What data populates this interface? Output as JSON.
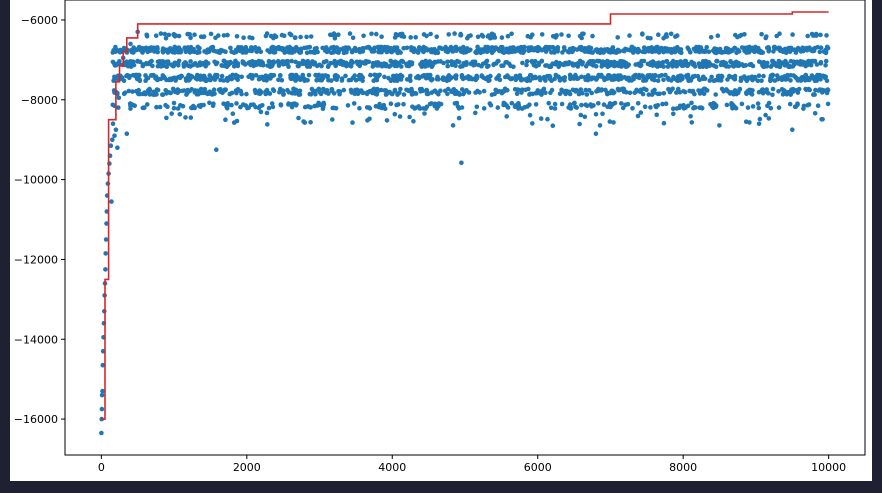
{
  "colors": {
    "page_background": "#1f2133",
    "figure_background": "#ffffff",
    "points": "#1f77b4",
    "best_line": "#d62728"
  },
  "chart_data": {
    "type": "scatter",
    "title": "",
    "xlabel": "",
    "ylabel": "",
    "xlim": [
      -500,
      10500
    ],
    "ylim": [
      -16900,
      -5500
    ],
    "grid": false,
    "x_ticks": [
      0,
      2000,
      4000,
      6000,
      8000,
      10000
    ],
    "x_tick_labels": [
      "0",
      "2000",
      "4000",
      "6000",
      "8000",
      "10000"
    ],
    "y_ticks": [
      -6000,
      -8000,
      -10000,
      -12000,
      -14000,
      -16000
    ],
    "y_tick_labels": [
      "−6000",
      "−8000",
      "−10000",
      "−12000",
      "−14000",
      "−16000"
    ],
    "series": [
      {
        "type": "scatter",
        "n_points": 10000,
        "bands_y": [
          -6750,
          -7100,
          -7450,
          -7800,
          -8150
        ],
        "early_points": [
          [
            0,
            -16350
          ],
          [
            5,
            -16000
          ],
          [
            8,
            -15750
          ],
          [
            10,
            -15400
          ],
          [
            15,
            -15300
          ],
          [
            20,
            -14650
          ],
          [
            25,
            -14300
          ],
          [
            30,
            -13950
          ],
          [
            35,
            -13600
          ],
          [
            40,
            -13300
          ],
          [
            45,
            -12900
          ],
          [
            50,
            -12600
          ],
          [
            55,
            -12250
          ],
          [
            60,
            -11850
          ],
          [
            65,
            -11500
          ],
          [
            70,
            -11100
          ],
          [
            75,
            -10800
          ],
          [
            80,
            -10400
          ],
          [
            90,
            -10100
          ],
          [
            100,
            -9850
          ],
          [
            110,
            -9600
          ],
          [
            120,
            -9400
          ],
          [
            130,
            -9150
          ],
          [
            140,
            -10550
          ],
          [
            150,
            -9000
          ],
          [
            160,
            -8600
          ],
          [
            180,
            -8900
          ],
          [
            200,
            -8750
          ],
          [
            220,
            -9200
          ],
          [
            240,
            -7950
          ],
          [
            260,
            -7400
          ],
          [
            300,
            -6950
          ],
          [
            350,
            -8850
          ],
          [
            400,
            -6600
          ],
          [
            500,
            -6300
          ],
          [
            1580,
            -9250
          ],
          [
            4950,
            -9580
          ],
          [
            6800,
            -8850
          ],
          [
            9500,
            -8750
          ]
        ]
      },
      {
        "type": "step",
        "x": [
          0,
          50,
          100,
          200,
          250,
          300,
          350,
          500,
          7000,
          9500,
          10000
        ],
        "y": [
          -16000,
          -12500,
          -8500,
          -7550,
          -7150,
          -6800,
          -6450,
          -6100,
          -5850,
          -5800,
          -5800
        ]
      }
    ]
  }
}
